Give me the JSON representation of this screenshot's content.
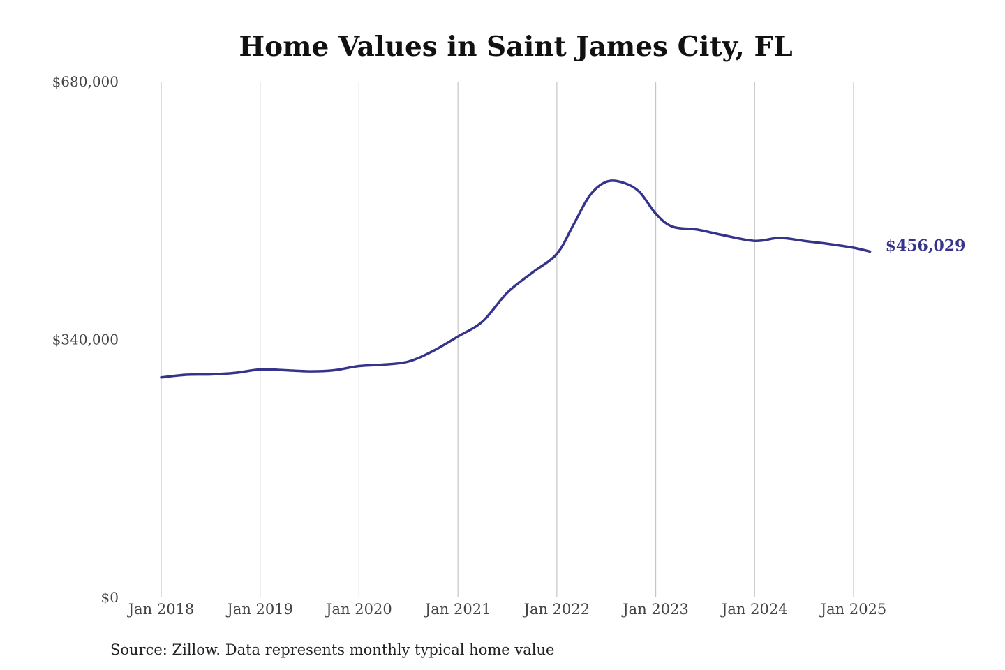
{
  "chart_data": {
    "type": "line",
    "title": "Home Values in Saint James City, FL",
    "xlabel": "",
    "ylabel": "",
    "ylim": [
      0,
      680000
    ],
    "xlim": [
      "2018-01",
      "2025-03"
    ],
    "y_ticks": [
      "$0",
      "$340,000",
      "$680,000"
    ],
    "x_ticks": [
      "Jan 2018",
      "Jan 2019",
      "Jan 2020",
      "Jan 2021",
      "Jan 2022",
      "Jan 2023",
      "Jan 2024",
      "Jan 2025"
    ],
    "grid": "vertical",
    "line_color": "#36348a",
    "end_label": "$456,029",
    "series": [
      {
        "values": [
          {
            "x": "2018-01",
            "y": 290000
          },
          {
            "x": "2018-04",
            "y": 293500
          },
          {
            "x": "2018-07",
            "y": 294000
          },
          {
            "x": "2018-10",
            "y": 296000
          },
          {
            "x": "2019-01",
            "y": 300500
          },
          {
            "x": "2019-04",
            "y": 299500
          },
          {
            "x": "2019-07",
            "y": 298000
          },
          {
            "x": "2019-10",
            "y": 299500
          },
          {
            "x": "2020-01",
            "y": 305000
          },
          {
            "x": "2020-04",
            "y": 307000
          },
          {
            "x": "2020-07",
            "y": 311000
          },
          {
            "x": "2020-10",
            "y": 325000
          },
          {
            "x": "2021-01",
            "y": 344000
          },
          {
            "x": "2021-04",
            "y": 364000
          },
          {
            "x": "2021-07",
            "y": 402000
          },
          {
            "x": "2021-10",
            "y": 428000
          },
          {
            "x": "2022-01",
            "y": 453000
          },
          {
            "x": "2022-03",
            "y": 491000
          },
          {
            "x": "2022-05",
            "y": 530000
          },
          {
            "x": "2022-07",
            "y": 548000
          },
          {
            "x": "2022-09",
            "y": 547000
          },
          {
            "x": "2022-11",
            "y": 535000
          },
          {
            "x": "2023-01",
            "y": 506000
          },
          {
            "x": "2023-03",
            "y": 489000
          },
          {
            "x": "2023-06",
            "y": 485000
          },
          {
            "x": "2023-09",
            "y": 478000
          },
          {
            "x": "2024-01",
            "y": 470000
          },
          {
            "x": "2024-04",
            "y": 474000
          },
          {
            "x": "2024-07",
            "y": 470000
          },
          {
            "x": "2024-10",
            "y": 466000
          },
          {
            "x": "2025-01",
            "y": 461000
          },
          {
            "x": "2025-03",
            "y": 456029
          }
        ]
      }
    ]
  },
  "source_note": "Source: Zillow. Data represents monthly typical home value"
}
